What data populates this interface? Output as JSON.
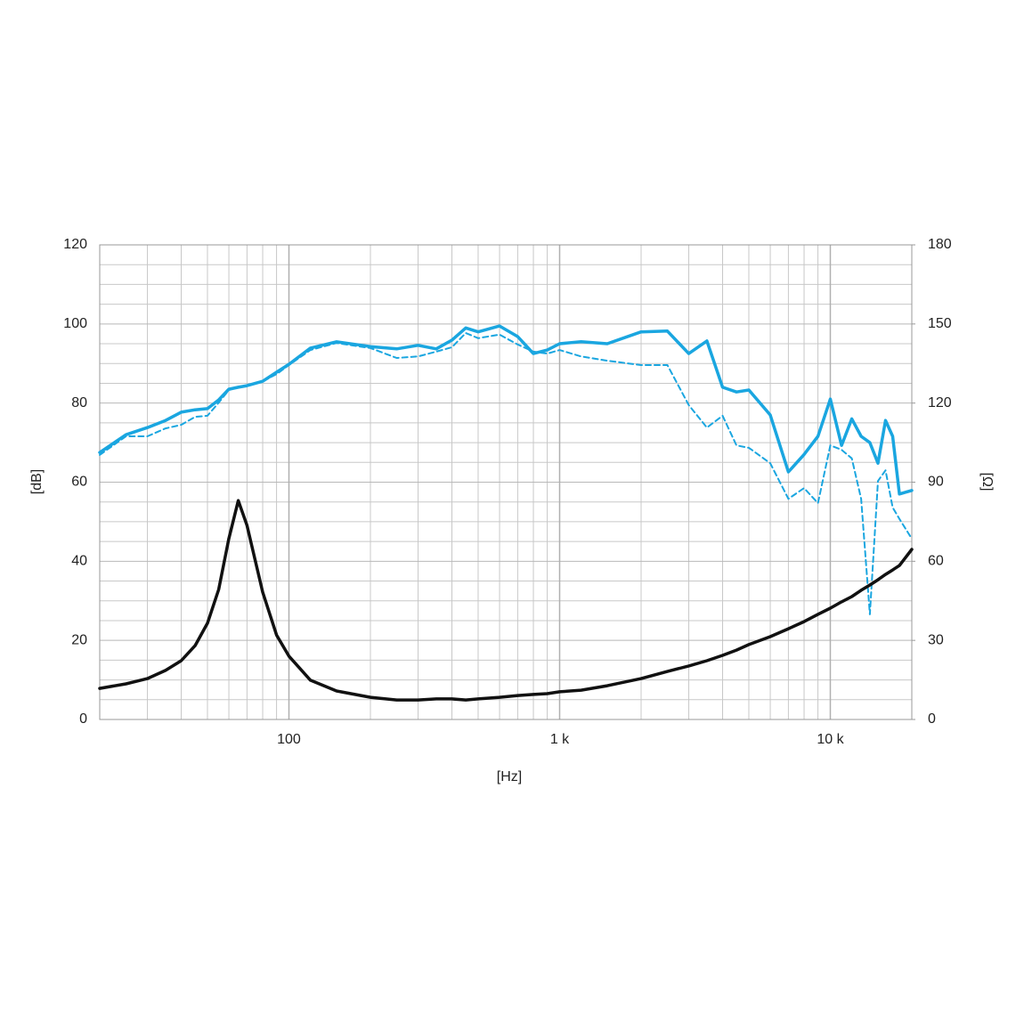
{
  "chart_data": {
    "type": "line",
    "xlabel": "[Hz]",
    "ylabel": "[dB]",
    "y2label": "[Ω]",
    "xscale": "log",
    "grid": true,
    "xlim": [
      20,
      20000
    ],
    "xticks": [
      100,
      {
        "value": 1000,
        "label": "1 k"
      },
      {
        "value": 10000,
        "label": "10 k"
      }
    ],
    "ylim": [
      0,
      120
    ],
    "yticks": [
      0,
      20,
      40,
      60,
      80,
      100,
      120
    ],
    "y2lim": [
      0,
      180
    ],
    "y2ticks": [
      0,
      30,
      60,
      90,
      120,
      150,
      180
    ],
    "x": [
      20,
      25,
      30,
      35,
      40,
      45,
      50,
      55,
      60,
      65,
      70,
      80,
      90,
      100,
      120,
      150,
      200,
      250,
      300,
      350,
      400,
      450,
      500,
      600,
      700,
      800,
      900,
      1000,
      1200,
      1500,
      2000,
      2500,
      3000,
      3500,
      4000,
      4500,
      5000,
      6000,
      7000,
      8000,
      9000,
      10000,
      11000,
      12000,
      13000,
      14000,
      15000,
      16000,
      17000,
      18000,
      20000
    ],
    "series": [
      {
        "color": "#1aa6e0",
        "dash": false,
        "values": [
          67.5,
          72,
          73.8,
          75.6,
          77.7,
          78.3,
          78.6,
          80.8,
          83.5,
          84,
          84.4,
          85.5,
          87.8,
          89.8,
          93.9,
          95.5,
          94.3,
          93.7,
          94.6,
          93.7,
          95.9,
          99,
          98,
          99.5,
          96.8,
          92.5,
          93.4,
          95,
          95.5,
          95,
          98,
          98.2,
          92.5,
          95.7,
          84,
          82.8,
          83.3,
          77,
          62.6,
          67,
          71.6,
          81,
          69.3,
          76,
          71.6,
          70,
          64.8,
          75.6,
          71.6,
          57,
          57.9
        ]
      },
      {
        "color": "#1aa6e0",
        "dash": true,
        "values": [
          66.9,
          71.6,
          71.6,
          73.6,
          74.5,
          76.5,
          76.8,
          80.1,
          83.3,
          84,
          84.4,
          85.5,
          87.3,
          89.6,
          93.4,
          95.2,
          93.9,
          91.4,
          91.8,
          93,
          94.1,
          97.7,
          96.4,
          97.3,
          94.8,
          93,
          92.5,
          93.4,
          91.8,
          90.7,
          89.6,
          89.6,
          79.5,
          73.8,
          76.8,
          69.3,
          68.7,
          64.8,
          55.8,
          58.5,
          54.7,
          69.3,
          68.2,
          66,
          55.8,
          26.6,
          60.3,
          63,
          53.6,
          50.7,
          45.7
        ]
      },
      {
        "color": "#111111",
        "dash": false,
        "axis": "y2",
        "values": [
          11.8,
          13.5,
          15.5,
          18.6,
          22.3,
          28,
          36.5,
          49.3,
          68.6,
          83,
          73.6,
          48.3,
          32,
          24,
          14.9,
          10.8,
          8.4,
          7.4,
          7.4,
          7.8,
          7.8,
          7.4,
          7.8,
          8.4,
          9.1,
          9.5,
          9.8,
          10.5,
          11.1,
          12.8,
          15.5,
          18.2,
          20.3,
          22.3,
          24.3,
          26.3,
          28.4,
          31.4,
          34.4,
          37.1,
          39.9,
          42.2,
          44.6,
          46.6,
          49,
          51,
          53,
          55,
          56.7,
          58.4,
          64.5
        ]
      }
    ]
  }
}
